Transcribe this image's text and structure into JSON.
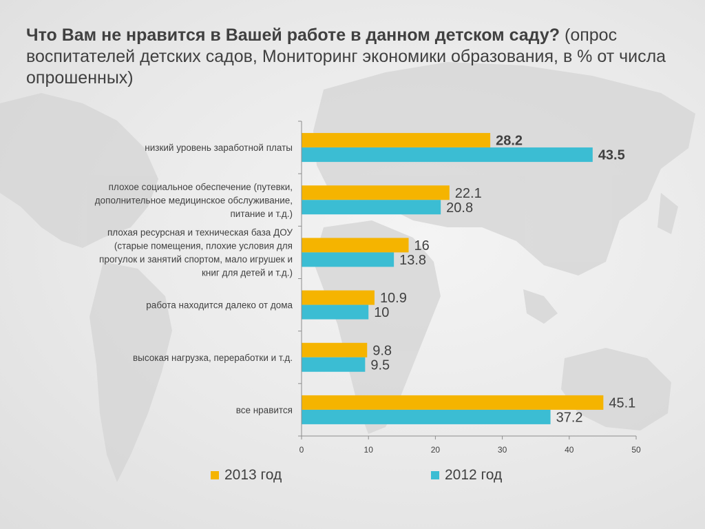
{
  "title": {
    "question": "Что Вам не нравится в Вашей работе в данном детском саду?",
    "subtitle": " (опрос воспитателей детских садов, Мониторинг экономики образования, в % от числа опрошенных)"
  },
  "colors": {
    "series_2013": "#F5B400",
    "series_2012": "#3BBDD3",
    "axis": "#8c8c8c",
    "map": "#d2d2d2"
  },
  "chart_data": {
    "type": "bar",
    "orientation": "horizontal",
    "categories": [
      "низкий уровень заработной платы",
      "плохое социальное обеспечение (путевки, дополнительное медицинское обслуживание, питание и т.д.)",
      "плохая ресурсная и техническая база ДОУ (старые помещения, плохие условия для прогулок и занятий спортом, мало игрушек и книг для детей и т.д.)",
      "работа находится далеко от дома",
      "высокая нагрузка, переработки и т.д.",
      "все нравится"
    ],
    "category_lines": [
      [
        "низкий уровень заработной платы"
      ],
      [
        "плохое социальное обеспечение (путевки,",
        "дополнительное медицинское обслуживание,",
        "питание и т.д.)"
      ],
      [
        "плохая ресурсная и техническая база ДОУ",
        "(старые помещения, плохие условия для",
        "прогулок и занятий спортом, мало игрушек и",
        "книг для детей и т.д.)"
      ],
      [
        "работа находится далеко от дома"
      ],
      [
        "высокая нагрузка, переработки и т.д."
      ],
      [
        "все нравится"
      ]
    ],
    "series": [
      {
        "name": "2013 год",
        "values": [
          28.2,
          22.1,
          16,
          10.9,
          9.8,
          45.1
        ]
      },
      {
        "name": "2012 год",
        "values": [
          43.5,
          20.8,
          13.8,
          10,
          9.5,
          37.2
        ]
      }
    ],
    "value_labels": [
      [
        "28.2",
        "22.1",
        "16",
        "10.9",
        "9.8",
        "45.1"
      ],
      [
        "43.5",
        "20.8",
        "13.8",
        "10",
        "9.5",
        "37.2"
      ]
    ],
    "bold_category_index": 0,
    "xlim": [
      0,
      50
    ],
    "xticks": [
      0,
      10,
      20,
      30,
      40,
      50
    ],
    "xlabel": "",
    "ylabel": "",
    "grid": false,
    "legend_position": "bottom"
  }
}
